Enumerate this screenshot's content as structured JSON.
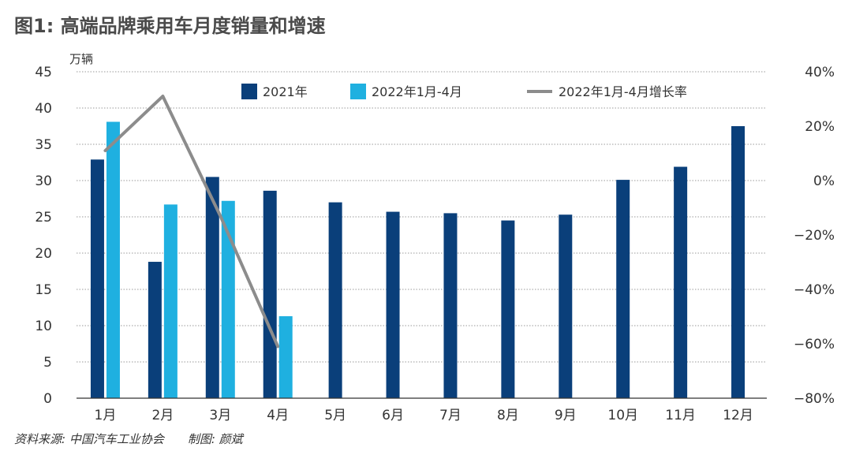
{
  "title": "图1: 高端品牌乘用车月度销量和增速",
  "source_note": "资料来源: 中国汽车工业协会",
  "credit_note": "制图: 颜斌",
  "chart_data": {
    "type": "bar",
    "title": "图1: 高端品牌乘用车月度销量和增速",
    "y_unit_label": "万辆",
    "categories": [
      "1月",
      "2月",
      "3月",
      "4月",
      "5月",
      "6月",
      "7月",
      "8月",
      "9月",
      "10月",
      "11月",
      "12月"
    ],
    "ylim": [
      0,
      45
    ],
    "yticks": [
      0,
      5,
      10,
      15,
      20,
      25,
      30,
      35,
      40,
      45
    ],
    "y2lim": [
      -80,
      40
    ],
    "y2ticks": [
      -80,
      -60,
      -40,
      -20,
      0,
      20,
      40
    ],
    "y2tick_labels": [
      "−80%",
      "−60%",
      "−40%",
      "−20%",
      "0%",
      "20%",
      "40%"
    ],
    "grid": true,
    "legend_position": "top",
    "series": [
      {
        "name": "2021年",
        "type": "bar",
        "color": "#0a3f7a",
        "values": [
          32.9,
          18.8,
          30.5,
          28.6,
          27.0,
          25.7,
          25.5,
          24.5,
          25.3,
          30.1,
          31.9,
          37.5
        ]
      },
      {
        "name": "2022年1月-4月",
        "type": "bar",
        "color": "#1fb0e0",
        "values": [
          38.1,
          26.7,
          27.2,
          11.3,
          null,
          null,
          null,
          null,
          null,
          null,
          null,
          null
        ]
      },
      {
        "name": "2022年1月-4月增长率",
        "type": "line",
        "axis": "right",
        "color": "#8c8c8c",
        "values": [
          11,
          31,
          -13,
          -61,
          null,
          null,
          null,
          null,
          null,
          null,
          null,
          null
        ]
      }
    ]
  }
}
